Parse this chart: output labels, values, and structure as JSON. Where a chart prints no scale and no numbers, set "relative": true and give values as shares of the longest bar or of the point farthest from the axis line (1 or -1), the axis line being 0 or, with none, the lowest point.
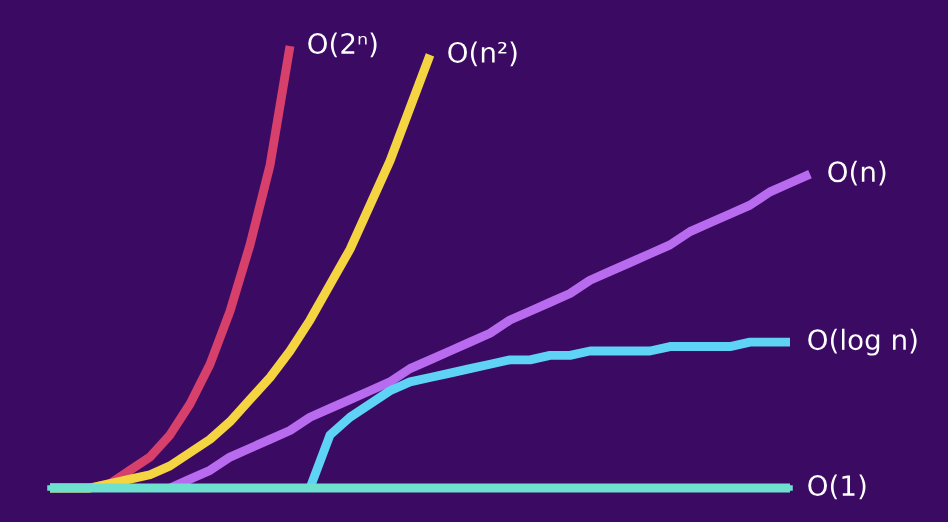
{
  "chart_data": {
    "type": "line",
    "relative": true,
    "legend": false,
    "grid": false,
    "marker": "none",
    "line_style": "solid",
    "categories": [
      null,
      null,
      null,
      null,
      null,
      null,
      null,
      null,
      null,
      null,
      null,
      null,
      null,
      null,
      null,
      null,
      null,
      null,
      null,
      null,
      null,
      null,
      null,
      null,
      null,
      null,
      null,
      null,
      null,
      null,
      null,
      null,
      null,
      null,
      null,
      null,
      null,
      null,
      null
    ],
    "series": [
      {
        "name": "O(2ⁿ)",
        "color": "#d6406a",
        "values": [
          0,
          0,
          0,
          0.01,
          0.04,
          0.07,
          0.12,
          0.19,
          0.28,
          0.4,
          0.55,
          0.73,
          1,
          null,
          null,
          null,
          null,
          null,
          null,
          null,
          null,
          null,
          null,
          null,
          null,
          null,
          null,
          null,
          null,
          null,
          null,
          null,
          null,
          null,
          null,
          null,
          null,
          null,
          null
        ]
      },
      {
        "name": "O(n²)",
        "color": "#f5d442",
        "values": [
          0,
          0,
          0,
          0.01,
          0.02,
          0.03,
          0.05,
          0.08,
          0.11,
          0.15,
          0.2,
          0.25,
          0.31,
          0.38,
          0.46,
          0.54,
          0.64,
          0.74,
          0.86,
          0.98,
          null,
          null,
          null,
          null,
          null,
          null,
          null,
          null,
          null,
          null,
          null,
          null,
          null,
          null,
          null,
          null,
          null,
          null,
          null
        ]
      },
      {
        "name": "O(n)",
        "color": "#b86bef",
        "values": [
          null,
          null,
          null,
          null,
          null,
          null,
          0,
          0.02,
          0.04,
          0.07,
          0.09,
          0.11,
          0.13,
          0.16,
          0.18,
          0.2,
          0.22,
          0.24,
          0.27,
          0.29,
          0.31,
          0.33,
          0.35,
          0.38,
          0.4,
          0.42,
          0.44,
          0.47,
          0.49,
          0.51,
          0.53,
          0.55,
          0.58,
          0.6,
          0.62,
          0.64,
          0.67,
          0.69,
          0.71
        ]
      },
      {
        "name": "O(log n)",
        "color": "#5fd3f5",
        "values": [
          null,
          null,
          null,
          null,
          null,
          null,
          null,
          null,
          null,
          null,
          null,
          null,
          null,
          0,
          0.12,
          0.16,
          0.19,
          0.22,
          0.24,
          0.25,
          0.26,
          0.27,
          0.28,
          0.29,
          0.29,
          0.3,
          0.3,
          0.31,
          0.31,
          0.31,
          0.31,
          0.32,
          0.32,
          0.32,
          0.32,
          0.33,
          0.33,
          0.33,
          null
        ]
      },
      {
        "name": "O(1)",
        "color": "#6ee0d0",
        "values": [
          0,
          0,
          0,
          0,
          0,
          0,
          0,
          0,
          0,
          0,
          0,
          0,
          0,
          0,
          0,
          0,
          0,
          0,
          0,
          0,
          0,
          0,
          0,
          0,
          0,
          0,
          0,
          0,
          0,
          0,
          0,
          0,
          0,
          0,
          0,
          0,
          0,
          0,
          null
        ]
      }
    ]
  }
}
